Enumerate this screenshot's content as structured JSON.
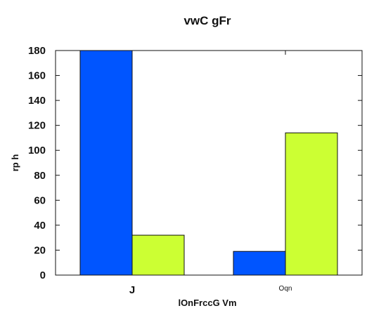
{
  "chart_data": {
    "type": "bar",
    "title": "vwC gFr",
    "xlabel": "lOnFrccG Vm",
    "ylabel": "rp h",
    "categories": [
      "J",
      "Oqn"
    ],
    "series": [
      {
        "values": [
          180,
          19
        ],
        "color": "#0055ff"
      },
      {
        "values": [
          32,
          114
        ],
        "color": "#ccff33"
      }
    ],
    "ylim": [
      0,
      180
    ],
    "yticks": [
      0,
      20,
      40,
      60,
      80,
      100,
      120,
      140,
      160,
      180
    ],
    "grid": false,
    "legend": "none"
  }
}
